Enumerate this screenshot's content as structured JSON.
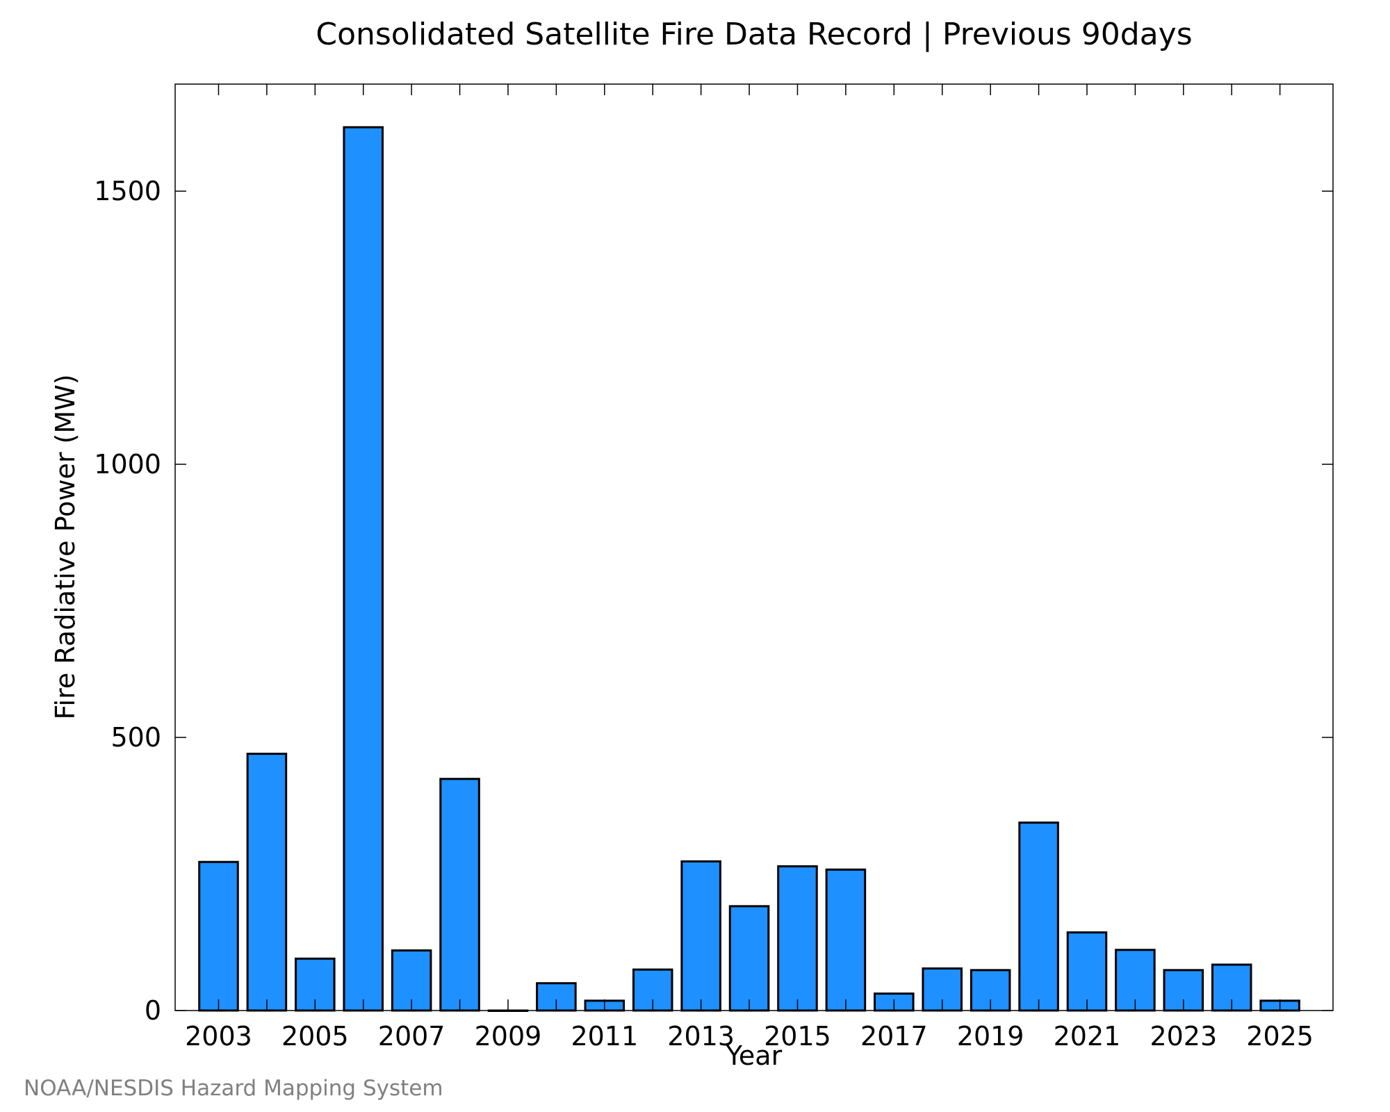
{
  "chart_data": {
    "type": "bar",
    "title": "Consolidated Satellite Fire Data Record | Previous 90days",
    "xlabel": "Year",
    "ylabel": "Fire Radiative Power (MW)",
    "credit": "NOAA/NESDIS Hazard Mapping System",
    "categories": [
      2003,
      2004,
      2005,
      2006,
      2007,
      2008,
      2009,
      2010,
      2011,
      2012,
      2013,
      2014,
      2015,
      2016,
      2017,
      2018,
      2019,
      2020,
      2021,
      2022,
      2023,
      2024,
      2025
    ],
    "values": [
      272,
      470,
      95,
      1617,
      110,
      424,
      0,
      50,
      18,
      75,
      273,
      191,
      264,
      258,
      31,
      77,
      74,
      344,
      143,
      111,
      74,
      84,
      18
    ],
    "x_tick_labels": [
      "2003",
      "2005",
      "2007",
      "2009",
      "2011",
      "2013",
      "2015",
      "2017",
      "2019",
      "2021",
      "2023",
      "2025"
    ],
    "y_tick_labels": [
      "0",
      "500",
      "1000",
      "1500"
    ],
    "y_ticks": [
      0,
      500,
      1000,
      1500
    ],
    "xlim": [
      2002.1,
      2026.1
    ],
    "ylim": [
      0,
      1696
    ],
    "bar_color": "#1e90ff",
    "bar_edge_color": "#000000",
    "grid": false,
    "legend": "none"
  }
}
